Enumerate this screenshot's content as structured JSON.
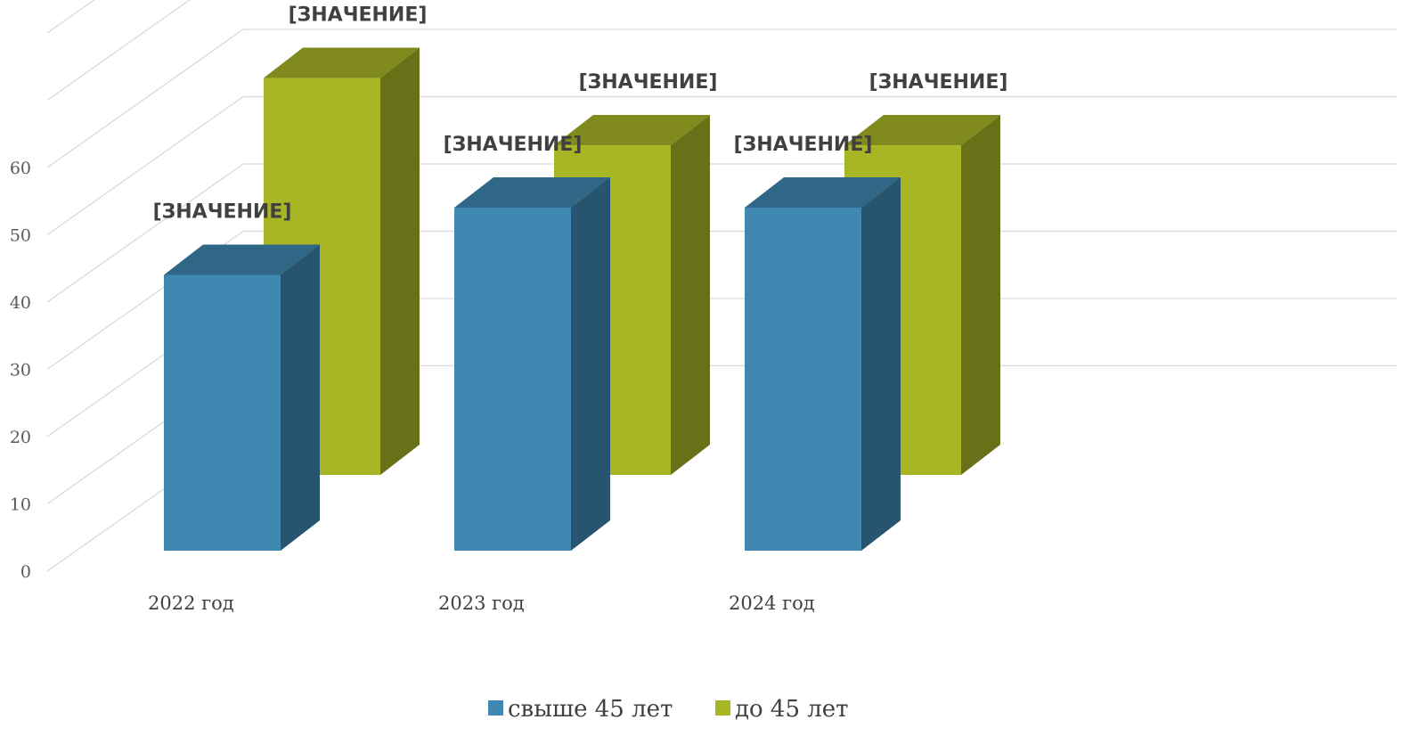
{
  "chart_data": {
    "type": "bar",
    "categories": [
      "2022 год",
      "2023 год",
      "2024 год"
    ],
    "series": [
      {
        "name": "свыше 45 лет",
        "values": [
          41,
          51,
          51
        ],
        "color": "#3f88b1",
        "data_labels": [
          "[ЗНАЧЕНИЕ]",
          "[ЗНАЧЕНИЕ]",
          "[ЗНАЧЕНИЕ]"
        ]
      },
      {
        "name": "до 45 лет",
        "values": [
          59,
          49,
          49
        ],
        "color": "#a8b626",
        "data_labels": [
          "[ЗНАЧЕНИЕ]",
          "[ЗНАЧЕНИЕ]",
          "[ЗНАЧЕНИЕ]"
        ]
      }
    ],
    "yticks": [
      "0",
      "10",
      "20",
      "30",
      "40",
      "50",
      "60"
    ],
    "ylim": [
      0,
      80
    ],
    "grid": true,
    "legend_position": "bottom"
  }
}
